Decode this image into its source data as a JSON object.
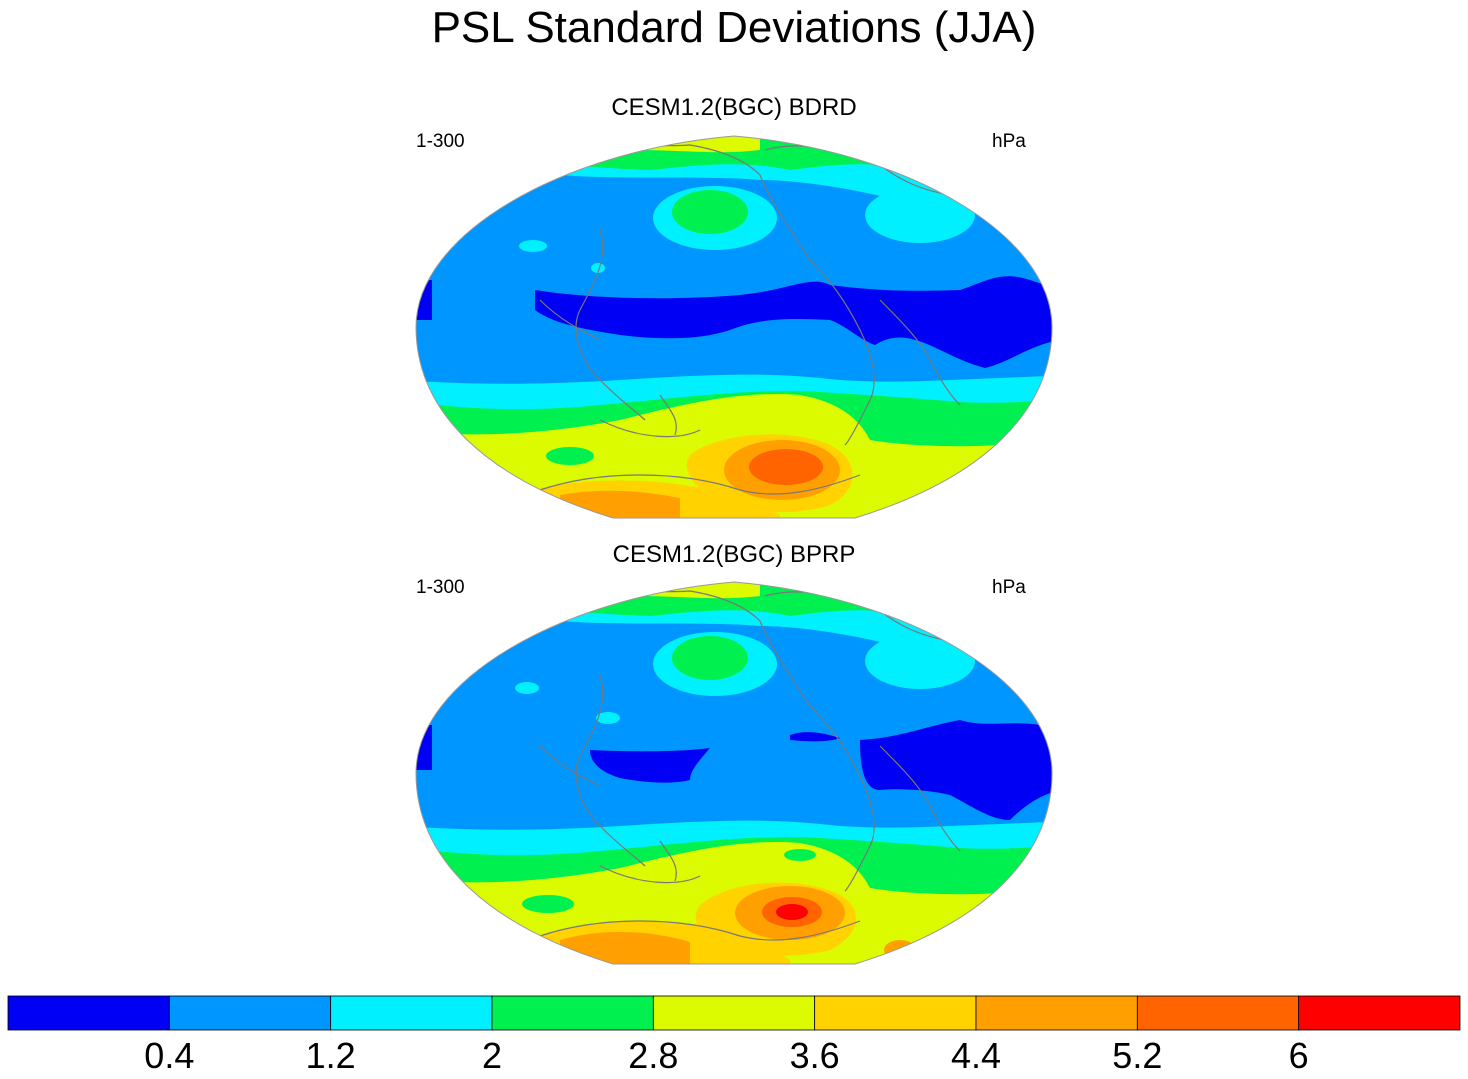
{
  "title": "PSL Standard Deviations (JJA)",
  "panels": [
    {
      "title": "CESM1.2(BGC) BDRD",
      "left_label": "1-300",
      "right_label": "hPa"
    },
    {
      "title": "CESM1.2(BGC) BPRP",
      "left_label": "1-300",
      "right_label": "hPa"
    }
  ],
  "colorbar": {
    "levels": [
      "0.4",
      "1.2",
      "2",
      "2.8",
      "3.6",
      "4.4",
      "5.2",
      "6"
    ],
    "colors": [
      "#0000f5",
      "#0096ff",
      "#00f0ff",
      "#00f050",
      "#dcfa00",
      "#ffd200",
      "#ffa000",
      "#ff6400",
      "#ff0000"
    ]
  },
  "style": {
    "coastline_color": "#787878"
  }
}
